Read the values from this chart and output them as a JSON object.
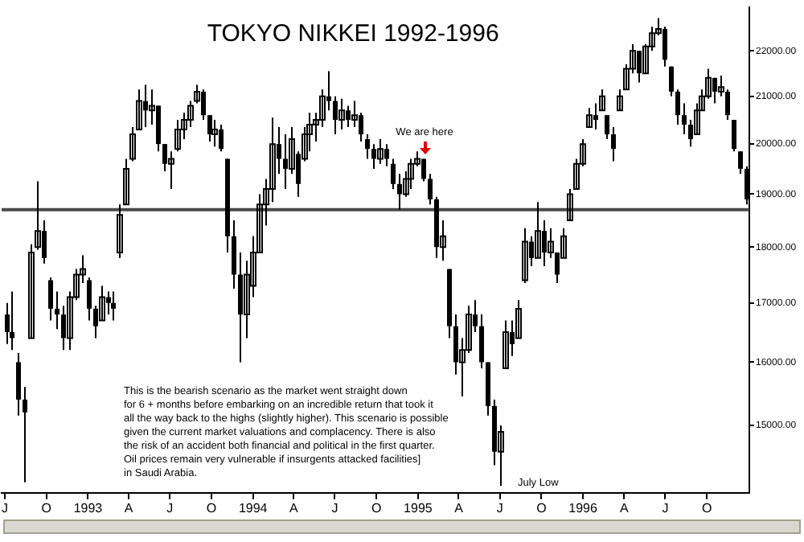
{
  "chart_data": {
    "type": "candlestick",
    "title": "TOKYO NIKKEI 1992-1996",
    "color": "#000000",
    "log": "y",
    "legend": false,
    "grid": false,
    "x": [
      "1992-07-03",
      "1992-07-17",
      "1992-07-31",
      "1992-08-14",
      "1992-08-28",
      "1992-09-11",
      "1992-09-25",
      "1992-10-09",
      "1992-10-23",
      "1992-11-06",
      "1992-11-20",
      "1992-12-04",
      "1992-12-18",
      "1993-01-01",
      "1993-01-15",
      "1993-01-29",
      "1993-02-12",
      "1993-02-26",
      "1993-03-12",
      "1993-03-26",
      "1993-04-09",
      "1993-04-23",
      "1993-05-07",
      "1993-05-21",
      "1993-06-04",
      "1993-06-18",
      "1993-07-02",
      "1993-07-16",
      "1993-07-30",
      "1993-08-13",
      "1993-08-27",
      "1993-09-10",
      "1993-09-24",
      "1993-10-08",
      "1993-10-22",
      "1993-11-05",
      "1993-11-19",
      "1993-12-03",
      "1993-12-17",
      "1993-12-31",
      "1994-01-14",
      "1994-01-28",
      "1994-02-11",
      "1994-02-25",
      "1994-03-11",
      "1994-03-25",
      "1994-04-08",
      "1994-04-22",
      "1994-05-06",
      "1994-05-20",
      "1994-06-03",
      "1994-06-17",
      "1994-07-01",
      "1994-07-15",
      "1994-07-29",
      "1994-08-12",
      "1994-08-26",
      "1994-09-09",
      "1994-09-23",
      "1994-10-07",
      "1994-10-21",
      "1994-11-04",
      "1994-11-18",
      "1994-12-02",
      "1994-12-16",
      "1994-12-30",
      "1995-01-13",
      "1995-01-27",
      "1995-02-10",
      "1995-02-24",
      "1995-03-10",
      "1995-03-24",
      "1995-04-07",
      "1995-04-21",
      "1995-05-05",
      "1995-05-19",
      "1995-06-02",
      "1995-06-16",
      "1995-06-30",
      "1995-07-14",
      "1995-07-28",
      "1995-08-11",
      "1995-08-25",
      "1995-09-08",
      "1995-09-22",
      "1995-10-06",
      "1995-10-20",
      "1995-11-03",
      "1995-11-17",
      "1995-12-01",
      "1995-12-15",
      "1995-12-29",
      "1996-01-12",
      "1996-01-26",
      "1996-02-09",
      "1996-02-23",
      "1996-03-08",
      "1996-03-22",
      "1996-04-05",
      "1996-04-19",
      "1996-05-03",
      "1996-05-17",
      "1996-05-31",
      "1996-06-14",
      "1996-06-28",
      "1996-07-12",
      "1996-07-26",
      "1996-08-09",
      "1996-08-23",
      "1996-09-06",
      "1996-09-20",
      "1996-10-04",
      "1996-10-18",
      "1996-11-01",
      "1996-11-15",
      "1996-11-29",
      "1996-12-13",
      "1996-12-27"
    ],
    "ohlc": [
      [
        16800,
        17000,
        16300,
        16500
      ],
      [
        16500,
        17200,
        16200,
        16400
      ],
      [
        16000,
        16150,
        15150,
        15400
      ],
      [
        15400,
        15600,
        14150,
        15200
      ],
      [
        16400,
        18050,
        16400,
        17900
      ],
      [
        18000,
        19250,
        17950,
        18300
      ],
      [
        18300,
        18500,
        17700,
        17800
      ],
      [
        17400,
        17450,
        16700,
        16900
      ],
      [
        16900,
        17200,
        16550,
        16800
      ],
      [
        16800,
        16950,
        16200,
        16400
      ],
      [
        16400,
        17200,
        16200,
        17100
      ],
      [
        17100,
        17600,
        17050,
        17500
      ],
      [
        17500,
        17850,
        17350,
        17600
      ],
      [
        17400,
        17450,
        16700,
        16900
      ],
      [
        16900,
        16950,
        16400,
        16600
      ],
      [
        16700,
        17300,
        16700,
        17100
      ],
      [
        17100,
        17200,
        16800,
        17000
      ],
      [
        17000,
        17200,
        16700,
        16900
      ],
      [
        17900,
        18800,
        17800,
        18600
      ],
      [
        18800,
        19700,
        18800,
        19500
      ],
      [
        19700,
        20350,
        19650,
        20200
      ],
      [
        20300,
        21150,
        20300,
        20900
      ],
      [
        20900,
        21250,
        20350,
        20700
      ],
      [
        20700,
        21150,
        20400,
        20800
      ],
      [
        20800,
        20800,
        19850,
        20000
      ],
      [
        20000,
        20000,
        19450,
        19600
      ],
      [
        19600,
        19850,
        19100,
        19700
      ],
      [
        19900,
        20500,
        19850,
        20300
      ],
      [
        20300,
        20650,
        20100,
        20500
      ],
      [
        20500,
        20900,
        20350,
        20800
      ],
      [
        20900,
        21250,
        20850,
        21100
      ],
      [
        21100,
        21150,
        20500,
        20600
      ],
      [
        20600,
        20600,
        20050,
        20200
      ],
      [
        20200,
        20500,
        19950,
        20300
      ],
      [
        20300,
        20400,
        19850,
        19900
      ],
      [
        19700,
        19700,
        17900,
        18200
      ],
      [
        18200,
        18500,
        17250,
        17500
      ],
      [
        17500,
        17900,
        16000,
        16800
      ],
      [
        16800,
        17750,
        16400,
        17500
      ],
      [
        17300,
        18200,
        17100,
        17900
      ],
      [
        17900,
        19000,
        17900,
        18800
      ],
      [
        18800,
        19300,
        18400,
        19100
      ],
      [
        19100,
        20550,
        18850,
        20000
      ],
      [
        20000,
        20350,
        19400,
        19700
      ],
      [
        19700,
        20200,
        19100,
        19500
      ],
      [
        19500,
        20350,
        19400,
        20100
      ],
      [
        19800,
        19850,
        18950,
        19200
      ],
      [
        19700,
        20350,
        19650,
        20200
      ],
      [
        20200,
        20650,
        19850,
        20400
      ],
      [
        20400,
        20650,
        20050,
        20500
      ],
      [
        20500,
        21150,
        20350,
        21000
      ],
      [
        21000,
        21550,
        20700,
        20900
      ],
      [
        20900,
        21000,
        20200,
        20500
      ],
      [
        20500,
        20950,
        20300,
        20700
      ],
      [
        20700,
        20800,
        20350,
        20500
      ],
      [
        20500,
        20900,
        20350,
        20600
      ],
      [
        20600,
        20650,
        20050,
        20200
      ],
      [
        20100,
        20200,
        19700,
        19900
      ],
      [
        19900,
        20000,
        19500,
        19700
      ],
      [
        19700,
        20100,
        19600,
        19900
      ],
      [
        19900,
        20000,
        19550,
        19700
      ],
      [
        19600,
        19700,
        19100,
        19200
      ],
      [
        19200,
        19400,
        18700,
        19000
      ],
      [
        19000,
        19450,
        18950,
        19300
      ],
      [
        19300,
        19700,
        19100,
        19600
      ],
      [
        19600,
        19850,
        19550,
        19700
      ],
      [
        19700,
        19700,
        19250,
        19300
      ],
      [
        19300,
        19400,
        18800,
        18900
      ],
      [
        18900,
        18950,
        17800,
        18000
      ],
      [
        18000,
        18500,
        17750,
        18200
      ],
      [
        17600,
        17600,
        16400,
        16600
      ],
      [
        16600,
        16800,
        15800,
        16000
      ],
      [
        16000,
        16400,
        15450,
        16200
      ],
      [
        16200,
        16950,
        16150,
        16800
      ],
      [
        16800,
        17050,
        16500,
        16600
      ],
      [
        16600,
        16800,
        15900,
        16000
      ],
      [
        16000,
        16000,
        15150,
        15300
      ],
      [
        15300,
        15400,
        14400,
        14600
      ],
      [
        14600,
        15000,
        14100,
        14900
      ],
      [
        15900,
        16700,
        15900,
        16500
      ],
      [
        16500,
        16700,
        16100,
        16300
      ],
      [
        16400,
        17050,
        16400,
        16900
      ],
      [
        17400,
        18350,
        17350,
        18100
      ],
      [
        18100,
        18200,
        17650,
        17800
      ],
      [
        17800,
        18850,
        17800,
        18300
      ],
      [
        18300,
        18500,
        17650,
        17900
      ],
      [
        17900,
        18350,
        17800,
        18100
      ],
      [
        17900,
        17900,
        17350,
        17500
      ],
      [
        17800,
        18350,
        17800,
        18200
      ],
      [
        18500,
        19100,
        18500,
        19000
      ],
      [
        19100,
        19700,
        19100,
        19600
      ],
      [
        19600,
        20100,
        19550,
        20000
      ],
      [
        20350,
        20750,
        20350,
        20600
      ],
      [
        20600,
        20850,
        20300,
        20500
      ],
      [
        20700,
        21150,
        20700,
        21000
      ],
      [
        20600,
        20600,
        20100,
        20200
      ],
      [
        20200,
        20350,
        19650,
        19900
      ],
      [
        20700,
        21150,
        20700,
        21000
      ],
      [
        21150,
        21700,
        21150,
        21600
      ],
      [
        21600,
        22150,
        21500,
        22000
      ],
      [
        22000,
        22000,
        21300,
        21500
      ],
      [
        21500,
        22150,
        21500,
        22100
      ],
      [
        22100,
        22550,
        22000,
        22400
      ],
      [
        22400,
        22750,
        22350,
        22500
      ],
      [
        22500,
        22550,
        21650,
        21800
      ],
      [
        21650,
        21650,
        21000,
        21100
      ],
      [
        21100,
        21150,
        20400,
        20600
      ],
      [
        20600,
        20850,
        20200,
        20400
      ],
      [
        20400,
        20500,
        19950,
        20100
      ],
      [
        20200,
        20850,
        20200,
        20700
      ],
      [
        20700,
        21150,
        20700,
        21000
      ],
      [
        21000,
        21600,
        20950,
        21400
      ],
      [
        21400,
        21400,
        20850,
        21100
      ],
      [
        21100,
        21450,
        21000,
        21200
      ],
      [
        21100,
        21150,
        20500,
        20600
      ],
      [
        20500,
        20500,
        19850,
        19900
      ],
      [
        19850,
        19850,
        19400,
        19500
      ],
      [
        19500,
        19550,
        18800,
        18900
      ]
    ],
    "xlim": [
      "1992-06-24",
      "1997-01-03"
    ],
    "xticks": [
      {
        "value": "1992-07-01",
        "label": "J"
      },
      {
        "value": "1992-10-01",
        "label": "O"
      },
      {
        "value": "1993-01-01",
        "label": "1993"
      },
      {
        "value": "1993-04-01",
        "label": "A"
      },
      {
        "value": "1993-07-01",
        "label": "J"
      },
      {
        "value": "1993-10-01",
        "label": "O"
      },
      {
        "value": "1994-01-01",
        "label": "1994"
      },
      {
        "value": "1994-04-01",
        "label": "A"
      },
      {
        "value": "1994-07-01",
        "label": "J"
      },
      {
        "value": "1994-10-01",
        "label": "O"
      },
      {
        "value": "1995-01-01",
        "label": "1995"
      },
      {
        "value": "1995-04-01",
        "label": "A"
      },
      {
        "value": "1995-07-01",
        "label": "J"
      },
      {
        "value": "1995-10-01",
        "label": "O"
      },
      {
        "value": "1996-01-01",
        "label": "1996"
      },
      {
        "value": "1996-04-01",
        "label": "A"
      },
      {
        "value": "1996-07-01",
        "label": "J"
      },
      {
        "value": "1996-10-01",
        "label": "O"
      }
    ],
    "ylim": [
      14000,
      23000
    ],
    "yticks": [
      {
        "value": 15000,
        "label": "15000.00"
      },
      {
        "value": 16000,
        "label": "16000.00"
      },
      {
        "value": 17000,
        "label": "17000.00"
      },
      {
        "value": 18000,
        "label": "18000.00"
      },
      {
        "value": 19000,
        "label": "19000.00"
      },
      {
        "value": 20000,
        "label": "20000.00"
      },
      {
        "value": 21000,
        "label": "21000.00"
      },
      {
        "value": 22000,
        "label": "22000.00"
      }
    ],
    "ref_lines": [
      {
        "axis": "y",
        "value": 18700,
        "color": "#4a4a4a"
      }
    ],
    "annotations": [
      "We are here",
      "July Low",
      "This is the bearish scenario as the market went straight down\nfor 6 + months before embarking on an incredible return that took it\nall the way back to the highs (slightly higher). This scenario is possible\ngiven the current market valuations and complacency. There is also\nthe risk of an accident both financial and political in the first quarter.\nOil prices remain very vulnerable if insurgents attacked facilities]\nin Saudi Arabia."
    ]
  }
}
